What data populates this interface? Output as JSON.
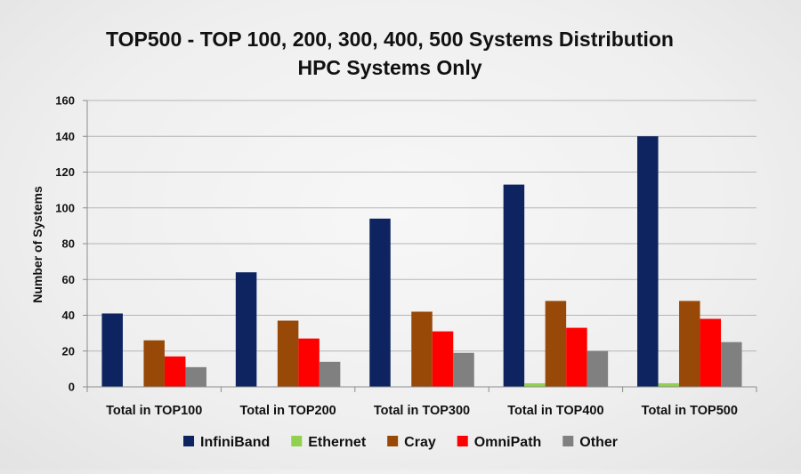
{
  "chart_data": {
    "type": "bar",
    "title": "TOP500 - TOP 100, 200, 300, 400, 500 Systems Distribution",
    "subtitle": "HPC Systems Only",
    "xlabel": "",
    "ylabel": "Number of Systems",
    "ylim": [
      0,
      160
    ],
    "yticks": [
      0,
      20,
      40,
      60,
      80,
      100,
      120,
      140,
      160
    ],
    "grid": true,
    "legend_position": "bottom",
    "categories": [
      "Total in TOP100",
      "Total in TOP200",
      "Total in TOP300",
      "Total in TOP400",
      "Total in TOP500"
    ],
    "series": [
      {
        "name": "InfiniBand",
        "color": "#0d2461",
        "values": [
          41,
          64,
          94,
          113,
          140
        ]
      },
      {
        "name": "Ethernet",
        "color": "#92d050",
        "values": [
          0,
          0,
          0,
          2,
          2
        ]
      },
      {
        "name": "Cray",
        "color": "#984807",
        "values": [
          26,
          37,
          42,
          48,
          48
        ]
      },
      {
        "name": "OmniPath",
        "color": "#ff0000",
        "values": [
          17,
          27,
          31,
          33,
          38
        ]
      },
      {
        "name": "Other",
        "color": "#808080",
        "values": [
          11,
          14,
          19,
          20,
          25
        ]
      }
    ]
  }
}
